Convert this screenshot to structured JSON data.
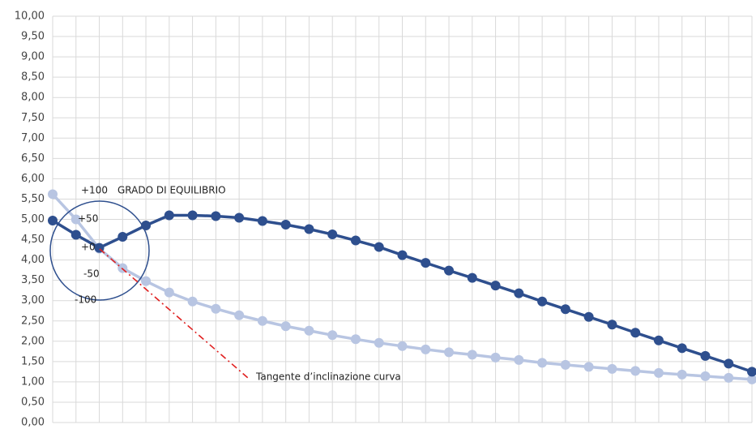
{
  "chart_data": {
    "type": "line",
    "categories": [
      null,
      null,
      null,
      null,
      null,
      null,
      null,
      null,
      null,
      null,
      null,
      null,
      null,
      null,
      null,
      null,
      null,
      null,
      null,
      null,
      null,
      null,
      null,
      null,
      null,
      null,
      null,
      null,
      null,
      null,
      null
    ],
    "series": [
      {
        "name": null,
        "color": "#b8c5e2",
        "values": [
          5.62,
          5.0,
          4.28,
          3.8,
          3.48,
          3.2,
          2.98,
          2.8,
          2.64,
          2.5,
          2.37,
          2.26,
          2.15,
          2.05,
          1.96,
          1.88,
          1.8,
          1.73,
          1.67,
          1.6,
          1.54,
          1.47,
          1.42,
          1.37,
          1.32,
          1.27,
          1.22,
          1.18,
          1.14,
          1.1,
          1.06
        ]
      },
      {
        "name": null,
        "color": "#2e4f8e",
        "values": [
          4.97,
          4.62,
          4.3,
          4.57,
          4.85,
          5.1,
          5.1,
          5.08,
          5.04,
          4.96,
          4.87,
          4.76,
          4.63,
          4.48,
          4.32,
          4.12,
          3.93,
          3.74,
          3.56,
          3.37,
          3.18,
          2.98,
          2.79,
          2.6,
          2.41,
          2.21,
          2.02,
          1.83,
          1.64,
          1.45,
          1.25
        ]
      }
    ],
    "ylim": [
      0,
      10
    ],
    "yticks": [
      {
        "value": 0,
        "label": "0,00"
      },
      {
        "value": 0.5,
        "label": "0,50"
      },
      {
        "value": 1,
        "label": "1,00"
      },
      {
        "value": 1.5,
        "label": "1,50"
      },
      {
        "value": 2,
        "label": "2,00"
      },
      {
        "value": 2.5,
        "label": "2,50"
      },
      {
        "value": 3,
        "label": "3,00"
      },
      {
        "value": 3.5,
        "label": "3,50"
      },
      {
        "value": 4,
        "label": "4,00"
      },
      {
        "value": 4.5,
        "label": "4,50"
      },
      {
        "value": 5,
        "label": "5,00"
      },
      {
        "value": 5.5,
        "label": "5,50"
      },
      {
        "value": 6,
        "label": "6,00"
      },
      {
        "value": 6.5,
        "label": "6,50"
      },
      {
        "value": 7,
        "label": "7,00"
      },
      {
        "value": 7.5,
        "label": "7,50"
      },
      {
        "value": 8,
        "label": "8,00"
      },
      {
        "value": 8.5,
        "label": "8,50"
      },
      {
        "value": 9,
        "label": "9,00"
      },
      {
        "value": 9.5,
        "label": "9,50"
      },
      {
        "value": 10,
        "label": "10,00"
      }
    ],
    "grid": true,
    "annotations": {
      "gauge_title": "GRADO DI EQUILIBRIO",
      "gauge_labels": [
        "+100",
        "+50",
        "+0",
        "-50",
        "-100"
      ],
      "tangent_label": "Tangente d’inclinazione curva"
    }
  }
}
